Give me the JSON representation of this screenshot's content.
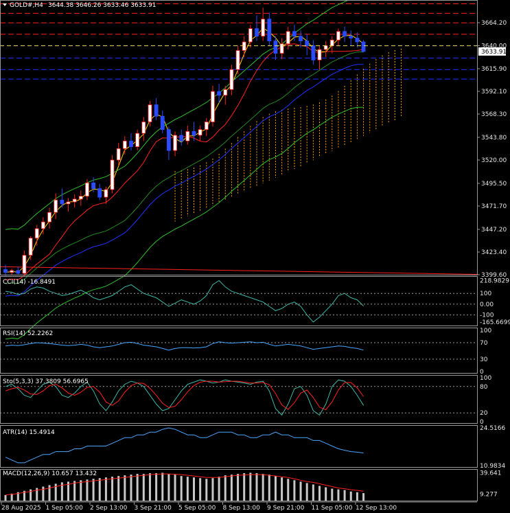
{
  "header": {
    "symbol_tf": "GOLD#,H4",
    "ohlc": "3644.38 3646.26 3633.46 3633.91"
  },
  "price_axis": {
    "ticks": [
      "3664.20",
      "3640.00",
      "3615.90",
      "3592.10",
      "3568.30",
      "3543.80",
      "3520.00",
      "3495.50",
      "3471.70",
      "3447.20",
      "3423.40",
      "3399.60"
    ],
    "current_price": "3633.91"
  },
  "time_axis": [
    "28 Aug 2025",
    "1 Sep 05:00",
    "2 Sep 13:00",
    "3 Sep 21:00",
    "5 Sep 05:00",
    "8 Sep 13:00",
    "9 Sep 21:00",
    "11 Sep 05:00",
    "12 Sep 13:00"
  ],
  "indicators": {
    "cci": {
      "label": "CCI(14) -16.8491",
      "ticks": [
        "218.9829",
        "100",
        "0.00",
        "-100",
        "-165.6699"
      ]
    },
    "rsi": {
      "label": "RSI(14) 52.2262",
      "ticks": [
        "100",
        "70",
        "30",
        "0"
      ]
    },
    "stoch": {
      "label": "Sto(5,3,3) 37.3809 56.6965",
      "ticks": [
        "100",
        "80",
        "20",
        "0"
      ]
    },
    "atr": {
      "label": "ATR(14) 15.4914",
      "ticks": [
        "24.5166",
        "10.9834"
      ]
    },
    "macd": {
      "label": "MACD(12,26,9) 10.657 13.432",
      "ticks": [
        "39.641",
        "9.277"
      ]
    }
  },
  "colors": {
    "bull": "#ffffff",
    "bear": "#2b4bff",
    "wick_bull": "#ff2020",
    "fast_ma": "#ffd700",
    "mid_ma": "#ff2020",
    "slow_ma": "#2030ff",
    "band": "#30c030",
    "cloud": "#ffa500",
    "osc": "#4aa6ff",
    "sig": "#ff2020",
    "hist": "#c8c8c8",
    "current_line": "#f0e060"
  },
  "chart_data": {
    "type": "candlestick",
    "title": "GOLD#,H4",
    "ylim": [
      3399.6,
      3688
    ],
    "candles": [
      [
        3405,
        3410,
        3398,
        3402
      ],
      [
        3402,
        3406,
        3399,
        3404
      ],
      [
        3404,
        3408,
        3400,
        3401
      ],
      [
        3401,
        3425,
        3399,
        3420
      ],
      [
        3420,
        3440,
        3415,
        3438
      ],
      [
        3438,
        3452,
        3430,
        3448
      ],
      [
        3448,
        3460,
        3442,
        3455
      ],
      [
        3455,
        3470,
        3448,
        3465
      ],
      [
        3465,
        3485,
        3458,
        3478
      ],
      [
        3478,
        3490,
        3470,
        3474
      ],
      [
        3474,
        3480,
        3466,
        3476
      ],
      [
        3476,
        3484,
        3470,
        3479
      ],
      [
        3479,
        3488,
        3472,
        3482
      ],
      [
        3482,
        3500,
        3478,
        3496
      ],
      [
        3496,
        3502,
        3486,
        3490
      ],
      [
        3490,
        3495,
        3478,
        3481
      ],
      [
        3481,
        3492,
        3474,
        3489
      ],
      [
        3489,
        3525,
        3485,
        3520
      ],
      [
        3520,
        3538,
        3514,
        3532
      ],
      [
        3532,
        3545,
        3526,
        3540
      ],
      [
        3540,
        3548,
        3530,
        3534
      ],
      [
        3534,
        3552,
        3530,
        3548
      ],
      [
        3548,
        3565,
        3540,
        3560
      ],
      [
        3560,
        3582,
        3555,
        3578
      ],
      [
        3578,
        3585,
        3562,
        3566
      ],
      [
        3566,
        3572,
        3548,
        3552
      ],
      [
        3552,
        3555,
        3520,
        3530
      ],
      [
        3530,
        3550,
        3524,
        3546
      ],
      [
        3546,
        3552,
        3535,
        3540
      ],
      [
        3540,
        3556,
        3536,
        3550
      ],
      [
        3550,
        3560,
        3540,
        3546
      ],
      [
        3546,
        3556,
        3540,
        3552
      ],
      [
        3552,
        3564,
        3545,
        3560
      ],
      [
        3560,
        3598,
        3555,
        3592
      ],
      [
        3592,
        3600,
        3580,
        3588
      ],
      [
        3588,
        3598,
        3578,
        3594
      ],
      [
        3594,
        3620,
        3588,
        3615
      ],
      [
        3615,
        3640,
        3610,
        3635
      ],
      [
        3635,
        3650,
        3628,
        3644
      ],
      [
        3644,
        3662,
        3638,
        3658
      ],
      [
        3658,
        3672,
        3645,
        3650
      ],
      [
        3650,
        3680,
        3645,
        3668
      ],
      [
        3668,
        3675,
        3640,
        3645
      ],
      [
        3645,
        3650,
        3625,
        3632
      ],
      [
        3632,
        3648,
        3626,
        3642
      ],
      [
        3642,
        3660,
        3636,
        3655
      ],
      [
        3655,
        3662,
        3645,
        3650
      ],
      [
        3650,
        3656,
        3638,
        3645
      ],
      [
        3645,
        3652,
        3630,
        3640
      ],
      [
        3640,
        3646,
        3620,
        3625
      ],
      [
        3625,
        3640,
        3615,
        3636
      ],
      [
        3636,
        3645,
        3628,
        3640
      ],
      [
        3640,
        3650,
        3632,
        3646
      ],
      [
        3646,
        3658,
        3640,
        3655
      ],
      [
        3655,
        3660,
        3644,
        3650
      ],
      [
        3650,
        3656,
        3640,
        3648
      ],
      [
        3648,
        3654,
        3638,
        3644
      ],
      [
        3644,
        3646,
        3633,
        3634
      ]
    ],
    "cci": [
      120,
      110,
      90,
      100,
      140,
      160,
      150,
      120,
      100,
      80,
      90,
      110,
      130,
      100,
      60,
      40,
      60,
      80,
      120,
      160,
      180,
      140,
      100,
      80,
      60,
      20,
      -20,
      10,
      40,
      20,
      0,
      30,
      80,
      180,
      219,
      160,
      120,
      100,
      80,
      60,
      40,
      20,
      -20,
      -60,
      -40,
      0,
      20,
      -20,
      -100,
      -165,
      -120,
      -60,
      0,
      80,
      100,
      60,
      40,
      -17
    ],
    "rsi": [
      62,
      64,
      63,
      65,
      68,
      70,
      69,
      68,
      66,
      64,
      63,
      64,
      66,
      64,
      60,
      58,
      60,
      62,
      66,
      70,
      71,
      68,
      64,
      62,
      60,
      56,
      52,
      56,
      58,
      58,
      57,
      58,
      60,
      68,
      72,
      70,
      69,
      70,
      71,
      72,
      70,
      71,
      66,
      62,
      64,
      66,
      64,
      62,
      58,
      54,
      56,
      58,
      60,
      62,
      61,
      58,
      56,
      52
    ],
    "sto_k": [
      80,
      85,
      75,
      60,
      55,
      70,
      85,
      90,
      80,
      60,
      55,
      65,
      80,
      90,
      70,
      40,
      25,
      45,
      70,
      85,
      92,
      88,
      80,
      60,
      40,
      25,
      30,
      50,
      70,
      85,
      90,
      95,
      92,
      88,
      90,
      95,
      92,
      90,
      88,
      85,
      90,
      92,
      70,
      30,
      15,
      40,
      75,
      80,
      60,
      25,
      15,
      40,
      80,
      95,
      92,
      80,
      60,
      37
    ],
    "sto_d": [
      70,
      75,
      78,
      72,
      63,
      62,
      70,
      82,
      85,
      77,
      65,
      60,
      67,
      78,
      80,
      67,
      45,
      37,
      47,
      67,
      82,
      88,
      87,
      76,
      60,
      42,
      32,
      35,
      50,
      68,
      82,
      90,
      92,
      92,
      90,
      91,
      92,
      92,
      90,
      88,
      88,
      89,
      84,
      64,
      38,
      28,
      43,
      65,
      72,
      55,
      33,
      27,
      45,
      72,
      89,
      89,
      77,
      57
    ],
    "atr": [
      14,
      13,
      12,
      12,
      13,
      14,
      15,
      15,
      16,
      16,
      16,
      17,
      17,
      18,
      18,
      18,
      18,
      19,
      20,
      21,
      21,
      22,
      22,
      23,
      23,
      24,
      24.5,
      24,
      23,
      22,
      22,
      21,
      21,
      22,
      23,
      23,
      23,
      22,
      22,
      21,
      21,
      22,
      22,
      23,
      22,
      22,
      21,
      21,
      21,
      20,
      20,
      19,
      18,
      17,
      16.5,
      16,
      15.8,
      15.5
    ],
    "macd": [
      8,
      10,
      12,
      14,
      16,
      18,
      20,
      22,
      24,
      26,
      27,
      28,
      29,
      30,
      31,
      32,
      33,
      34,
      35,
      36,
      37,
      38,
      38,
      39,
      39,
      39.6,
      38,
      37,
      35,
      34,
      33,
      32,
      31,
      32,
      34,
      36,
      37,
      38,
      39,
      39.6,
      39,
      38,
      37,
      35,
      33,
      31,
      29,
      27,
      25,
      23,
      21,
      19,
      17,
      16,
      15,
      13,
      12,
      10.7
    ],
    "macd_signal": [
      8,
      9,
      10,
      12,
      13,
      15,
      16,
      18,
      20,
      22,
      23,
      25,
      26,
      27,
      28,
      29,
      30,
      31,
      32,
      33,
      34,
      35,
      36,
      37,
      37.5,
      38,
      38,
      37.5,
      37,
      36,
      35,
      34,
      33,
      33,
      33,
      34,
      35,
      36,
      36.5,
      37,
      37,
      37,
      36,
      35,
      34,
      33,
      31,
      29,
      27,
      26,
      24,
      22,
      20,
      18,
      17,
      15.5,
      14.5,
      13.4
    ]
  }
}
